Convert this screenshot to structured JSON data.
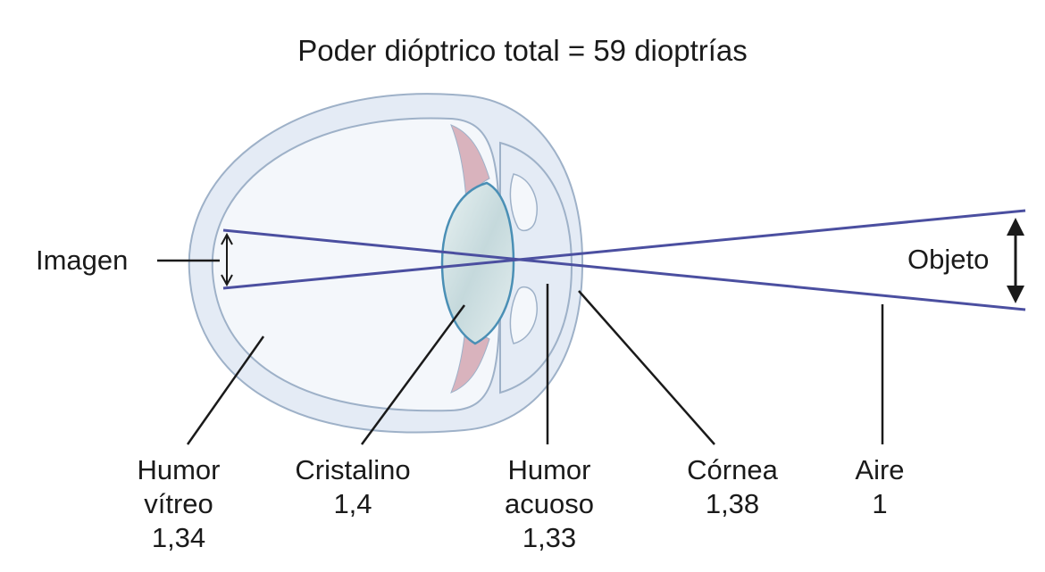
{
  "title": "Poder dióptrico total = 59 dioptrías",
  "labels": {
    "imagen": "Imagen",
    "objeto": "Objeto",
    "humor_vitreo": {
      "name_line1": "Humor",
      "name_line2": "vítreo",
      "value": "1,34"
    },
    "cristalino": {
      "name": "Cristalino",
      "value": "1,4"
    },
    "humor_acuoso": {
      "name_line1": "Humor",
      "name_line2": "acuoso",
      "value": "1,33"
    },
    "cornea": {
      "name": "Córnea",
      "value": "1,38"
    },
    "aire": {
      "name": "Aire",
      "value": "1"
    }
  },
  "colors": {
    "eye_fill": "#e4ebf5",
    "eye_stroke": "#9eb1c8",
    "lens_fill": "#c9dde0",
    "lens_stroke": "#4a8fb5",
    "iris": "#d9b3bd",
    "rays": "#4b4fa0",
    "leader": "#1a1a1a"
  }
}
